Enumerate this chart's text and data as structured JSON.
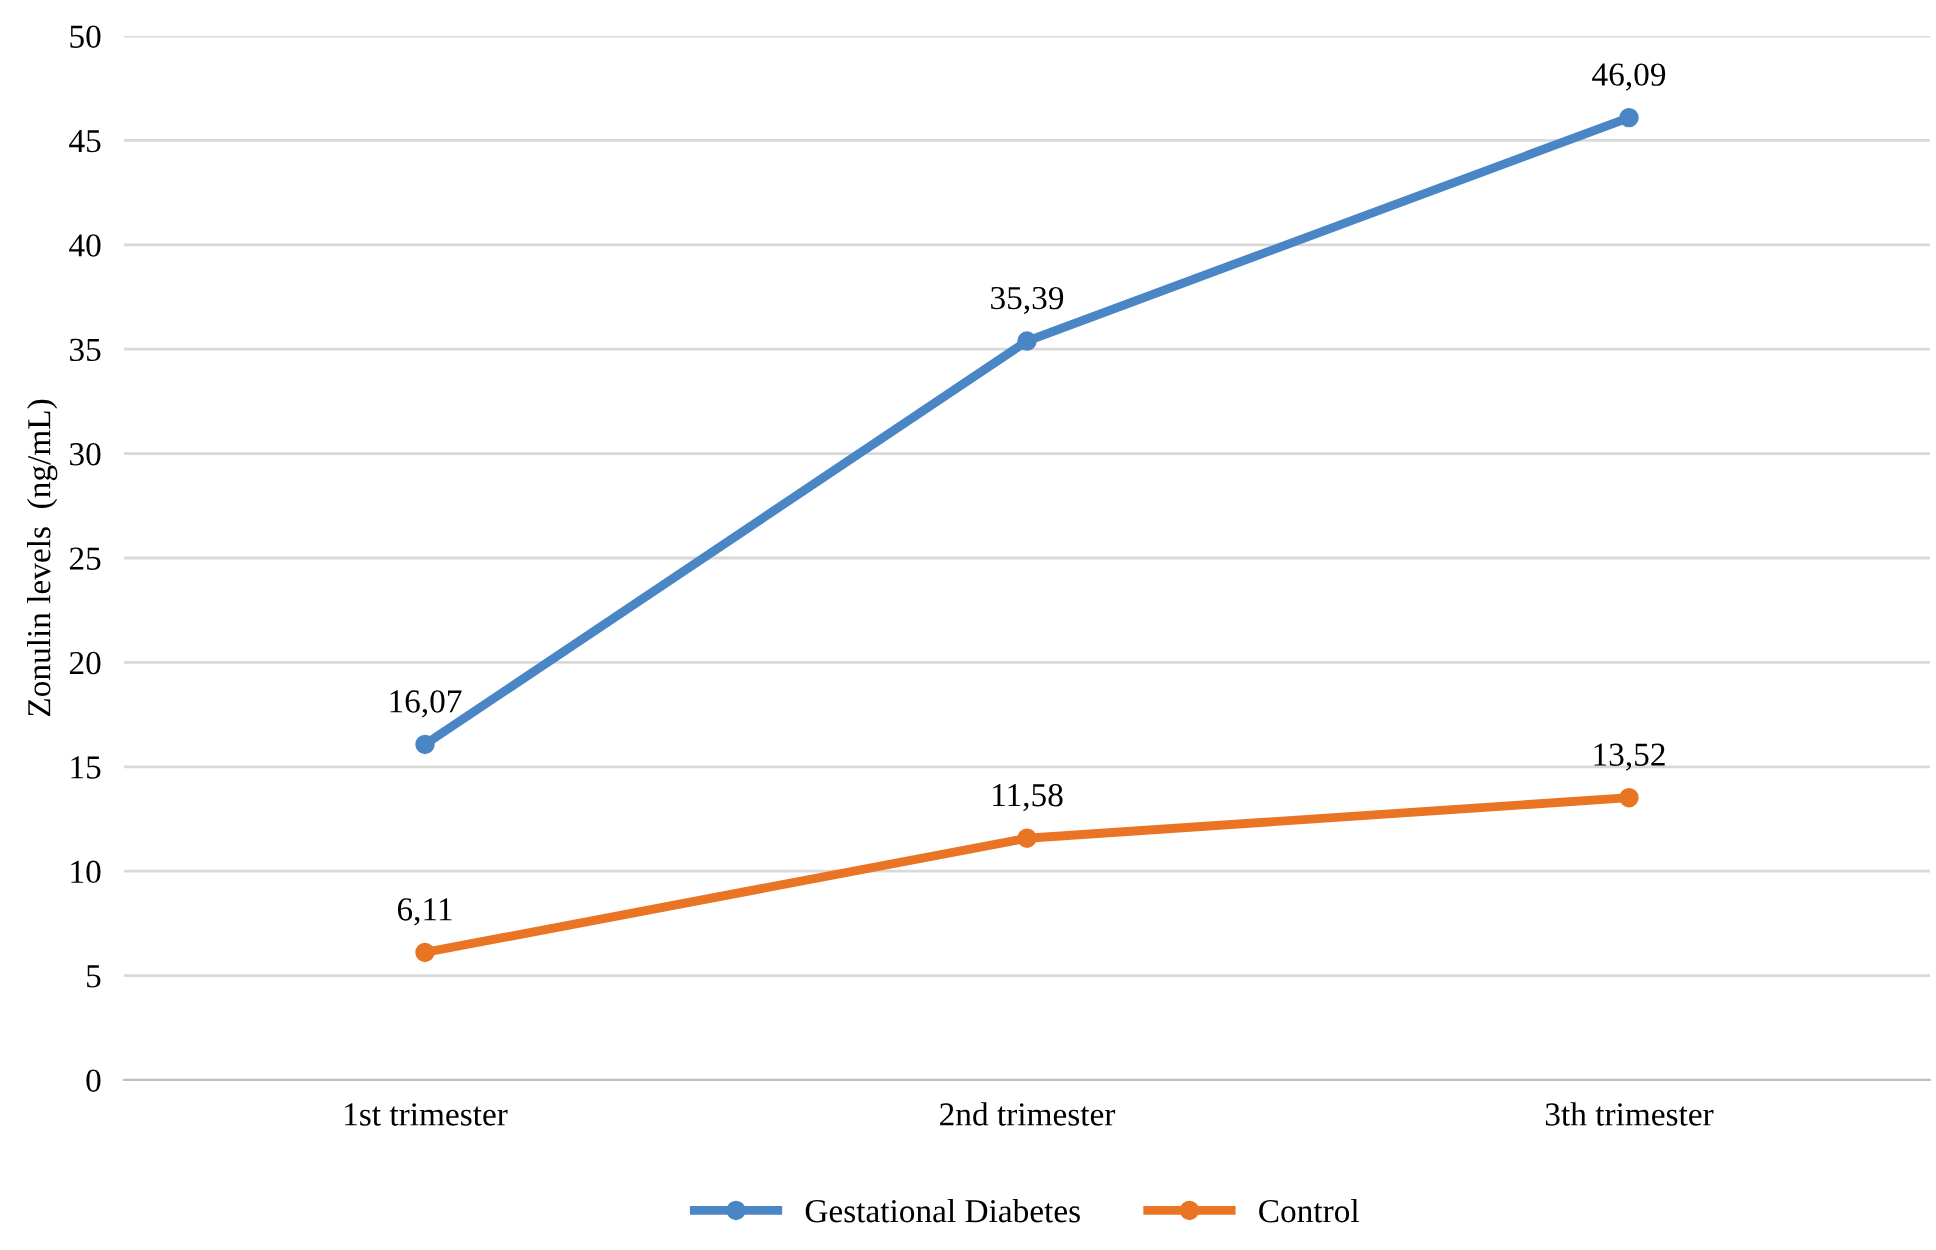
{
  "chart_data": {
    "type": "line",
    "ylabel": "Zonulin levels  (ng/mL)",
    "categories": [
      "1st trimester",
      "2nd trimester",
      "3th trimester"
    ],
    "series": [
      {
        "name": "Gestational Diabetes",
        "color": "#4a86c5",
        "values": [
          16.07,
          35.39,
          46.09
        ],
        "value_labels": [
          "16,07",
          "35,39",
          "46,09"
        ]
      },
      {
        "name": "Control",
        "color": "#e97424",
        "values": [
          6.11,
          11.58,
          13.52
        ],
        "value_labels": [
          "6,11",
          "11,58",
          "13,52"
        ]
      }
    ],
    "ylim": [
      0,
      50
    ],
    "yticks": [
      0,
      5,
      10,
      15,
      20,
      25,
      30,
      35,
      40,
      45,
      50
    ],
    "grid": "y",
    "legend": "bottom",
    "marker": "circle",
    "line_style": "solid"
  }
}
